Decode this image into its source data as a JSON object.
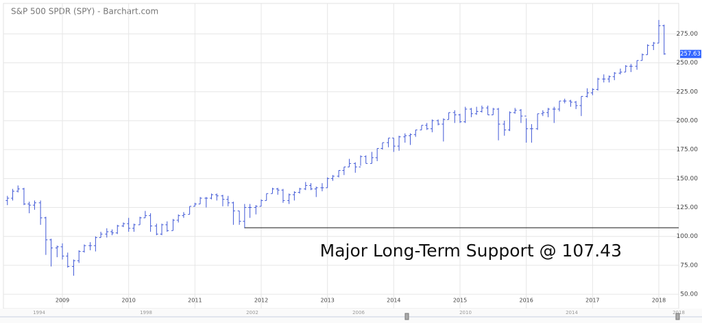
{
  "chart_data": {
    "type": "ohlc",
    "title": "S&P 500 SPDR (SPY) - Barchart.com",
    "color": "#3f57d6",
    "x": [
      2008.17,
      2008.25,
      2008.33,
      2008.42,
      2008.5,
      2008.58,
      2008.67,
      2008.75,
      2008.83,
      2008.92,
      2009.0,
      2009.08,
      2009.17,
      2009.25,
      2009.33,
      2009.42,
      2009.5,
      2009.58,
      2009.67,
      2009.75,
      2009.83,
      2009.92,
      2010.0,
      2010.08,
      2010.17,
      2010.25,
      2010.33,
      2010.42,
      2010.5,
      2010.58,
      2010.67,
      2010.75,
      2010.83,
      2010.92,
      2011.0,
      2011.08,
      2011.17,
      2011.25,
      2011.33,
      2011.42,
      2011.5,
      2011.58,
      2011.67,
      2011.75,
      2011.83,
      2011.92,
      2012.0,
      2012.08,
      2012.17,
      2012.25,
      2012.33,
      2012.42,
      2012.5,
      2012.58,
      2012.67,
      2012.75,
      2012.83,
      2012.92,
      2013.0,
      2013.08,
      2013.17,
      2013.25,
      2013.33,
      2013.42,
      2013.5,
      2013.58,
      2013.67,
      2013.75,
      2013.83,
      2013.92,
      2014.0,
      2014.08,
      2014.17,
      2014.25,
      2014.33,
      2014.42,
      2014.5,
      2014.58,
      2014.67,
      2014.75,
      2014.83,
      2014.92,
      2015.0,
      2015.08,
      2015.17,
      2015.25,
      2015.33,
      2015.42,
      2015.5,
      2015.58,
      2015.67,
      2015.75,
      2015.83,
      2015.92,
      2016.0,
      2016.08,
      2016.17,
      2016.25,
      2016.33,
      2016.42,
      2016.5,
      2016.58,
      2016.67,
      2016.75,
      2016.83,
      2016.92,
      2017.0,
      2017.08,
      2017.17,
      2017.25,
      2017.33,
      2017.42,
      2017.5,
      2017.58,
      2017.67,
      2017.75,
      2017.83,
      2017.92,
      2018.0,
      2018.08
    ],
    "open": [
      131,
      133,
      139,
      141,
      128,
      127,
      129,
      116,
      97,
      90,
      91,
      83,
      74,
      79,
      87,
      92,
      92,
      99,
      102,
      104,
      103,
      109,
      111,
      107,
      110,
      116,
      118,
      109,
      102,
      110,
      105,
      114,
      118,
      119,
      126,
      128,
      133,
      133,
      136,
      135,
      132,
      129,
      122,
      113,
      125,
      125,
      126,
      131,
      137,
      141,
      140,
      131,
      136,
      138,
      141,
      144,
      141,
      142,
      142,
      150,
      152,
      157,
      160,
      163,
      160,
      169,
      163,
      168,
      176,
      181,
      185,
      178,
      186,
      187,
      188,
      192,
      196,
      193,
      200,
      197,
      201,
      207,
      205,
      199,
      210,
      206,
      208,
      211,
      205,
      210,
      197,
      192,
      207,
      209,
      204,
      193,
      193,
      206,
      207,
      210,
      210,
      217,
      217,
      216,
      213,
      221,
      224,
      227,
      236,
      236,
      238,
      241,
      242,
      247,
      247,
      252,
      257,
      265,
      267,
      282
    ],
    "high": [
      135,
      141,
      144,
      142,
      130,
      131,
      131,
      117,
      98,
      92,
      94,
      86,
      80,
      88,
      93,
      95,
      100,
      104,
      107,
      106,
      110,
      112,
      116,
      111,
      117,
      122,
      120,
      111,
      111,
      113,
      115,
      119,
      121,
      126,
      129,
      134,
      134,
      137,
      137,
      136,
      135,
      130,
      122,
      128,
      128,
      127,
      132,
      137,
      142,
      142,
      141,
      137,
      139,
      142,
      147,
      146,
      143,
      146,
      151,
      153,
      157,
      160,
      167,
      164,
      170,
      170,
      173,
      176,
      181,
      185,
      185,
      187,
      189,
      189,
      192,
      196,
      198,
      201,
      201,
      202,
      207,
      209,
      206,
      212,
      211,
      212,
      213,
      213,
      211,
      211,
      200,
      208,
      211,
      210,
      202,
      197,
      206,
      209,
      211,
      212,
      217,
      219,
      218,
      217,
      221,
      228,
      228,
      237,
      240,
      239,
      242,
      245,
      248,
      249,
      252,
      258,
      266,
      268,
      287,
      283
    ],
    "low": [
      127,
      131,
      138,
      127,
      120,
      123,
      110,
      84,
      74,
      82,
      80,
      73,
      66,
      77,
      86,
      88,
      87,
      99,
      99,
      101,
      102,
      108,
      104,
      104,
      110,
      116,
      104,
      101,
      101,
      104,
      105,
      112,
      116,
      119,
      126,
      128,
      125,
      132,
      131,
      126,
      126,
      110,
      110,
      107,
      116,
      119,
      126,
      131,
      137,
      136,
      129,
      128,
      131,
      137,
      140,
      140,
      134,
      139,
      142,
      148,
      151,
      153,
      160,
      155,
      161,
      163,
      163,
      165,
      175,
      177,
      173,
      174,
      181,
      179,
      186,
      192,
      192,
      190,
      196,
      182,
      201,
      198,
      198,
      198,
      203,
      205,
      207,
      205,
      205,
      183,
      187,
      191,
      206,
      198,
      181,
      181,
      192,
      204,
      203,
      198,
      208,
      215,
      212,
      210,
      204,
      220,
      222,
      226,
      233,
      233,
      235,
      240,
      242,
      242,
      244,
      252,
      257,
      261,
      267,
      257
    ],
    "close": [
      133,
      139,
      141,
      128,
      127,
      129,
      116,
      97,
      90,
      91,
      83,
      74,
      79,
      87,
      92,
      92,
      99,
      102,
      104,
      103,
      109,
      111,
      107,
      110,
      116,
      118,
      109,
      102,
      110,
      105,
      114,
      118,
      119,
      126,
      128,
      133,
      133,
      136,
      135,
      132,
      129,
      122,
      113,
      125,
      125,
      126,
      131,
      137,
      141,
      140,
      131,
      136,
      138,
      141,
      144,
      141,
      142,
      142,
      150,
      152,
      157,
      160,
      163,
      160,
      169,
      163,
      168,
      176,
      181,
      185,
      178,
      186,
      187,
      188,
      192,
      196,
      193,
      200,
      197,
      201,
      207,
      205,
      199,
      210,
      206,
      208,
      211,
      205,
      210,
      197,
      192,
      207,
      209,
      204,
      193,
      193,
      206,
      207,
      210,
      210,
      217,
      217,
      216,
      213,
      221,
      224,
      227,
      236,
      236,
      238,
      241,
      242,
      247,
      247,
      252,
      257,
      265,
      267,
      282,
      257.63
    ],
    "last_value": 257.63,
    "last_color": "#3366ff",
    "xlim": [
      2008.11,
      2018.3
    ],
    "xticks": [
      2009,
      2010,
      2011,
      2012,
      2013,
      2014,
      2015,
      2016,
      2017,
      2018
    ],
    "ylim": [
      37.6,
      301.3
    ],
    "yticks": [
      {
        "value": 50,
        "label": "50.00"
      },
      {
        "value": 75,
        "label": "75.00"
      },
      {
        "value": 100,
        "label": "100.00"
      },
      {
        "value": 125,
        "label": "125.00"
      },
      {
        "value": 150,
        "label": "150.00"
      },
      {
        "value": 175,
        "label": "175.00"
      },
      {
        "value": 200,
        "label": "200.00"
      },
      {
        "value": 225,
        "label": "225.00"
      },
      {
        "value": 250,
        "label": "250.00"
      },
      {
        "value": 275,
        "label": "275.00"
      }
    ],
    "grid": true,
    "annotations": [
      {
        "text": "Major Long-Term Support @ 107.43",
        "y": 107.43,
        "x": 2011.75
      }
    ],
    "navigator": {
      "labels": [
        "1994",
        "1998",
        "2002",
        "2006",
        "2010",
        "2014",
        "2018"
      ]
    }
  }
}
